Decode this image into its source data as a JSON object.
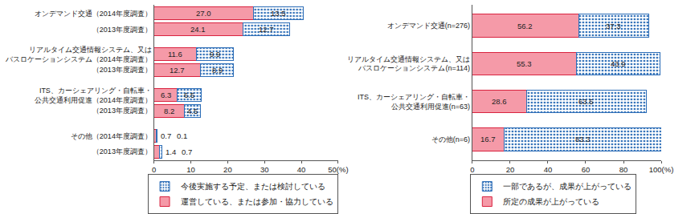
{
  "chart_data": [
    {
      "type": "bar",
      "orientation": "horizontal",
      "stacked": true,
      "data_labels": true,
      "grid": false,
      "legend": "bottom",
      "categories": [
        "オンデマンド交通（2014年度調査）",
        "（2013年度調査）",
        "リアルタイム交通情報システム、又は\nバスロケーションシステム（2014年度調査）",
        "（2013年度調査）",
        "ITS、カーシェアリング・自転車・\n公共交通利用促進（2014年度調査）",
        "（2013年度調査）",
        "その他（2014年度調査）",
        "（2013年度調査）"
      ],
      "series": [
        {
          "name": "運営している、または参加・協力している",
          "color": "#f59aa8",
          "values": [
            27.0,
            24.1,
            11.6,
            12.7,
            6.3,
            8.2,
            0.7,
            1.4
          ],
          "value_labels": [
            "27.0",
            "24.1",
            "11.6",
            "12.7",
            "6.3",
            "8.2",
            "0.7",
            "1.4"
          ]
        },
        {
          "name": "今後実施する予定、または検討している",
          "color": "#2f6fb8",
          "marker": "dots",
          "values": [
            13.5,
            12.7,
            9.9,
            8.9,
            6.5,
            4.5,
            0.1,
            0.7
          ],
          "value_labels": [
            "13.5",
            "12.7",
            "9.9",
            "8.9",
            "6.5",
            "4.5",
            "0.1",
            "0.7"
          ]
        }
      ],
      "xlim": [
        0,
        50
      ],
      "xticks": [
        0,
        10,
        20,
        30,
        40,
        {
          "value": 50,
          "label": "50(%)"
        }
      ]
    },
    {
      "type": "bar",
      "orientation": "horizontal",
      "stacked": true,
      "data_labels": true,
      "grid": false,
      "legend": "bottom",
      "categories": [
        "オンデマンド交通(n=276)",
        "リアルタイム交通情報システム、又は\nバスロケーションシステム(n=114)",
        "ITS、カーシェアリング・自転車・\n公共交通利用促進(n=63)",
        "その他(n=6)"
      ],
      "series": [
        {
          "name": "所定の成果が上がっている",
          "color": "#f59aa8",
          "values": [
            56.2,
            55.3,
            28.6,
            16.7
          ]
        },
        {
          "name": "一部であるが、成果が上がっている",
          "color": "#2f6fb8",
          "marker": "dots",
          "values": [
            37.3,
            43.9,
            63.5,
            83.3
          ]
        }
      ],
      "xlim": [
        0,
        100
      ],
      "xticks": [
        0,
        20,
        40,
        60,
        80,
        {
          "value": 100,
          "label": "100(%)"
        }
      ]
    }
  ]
}
